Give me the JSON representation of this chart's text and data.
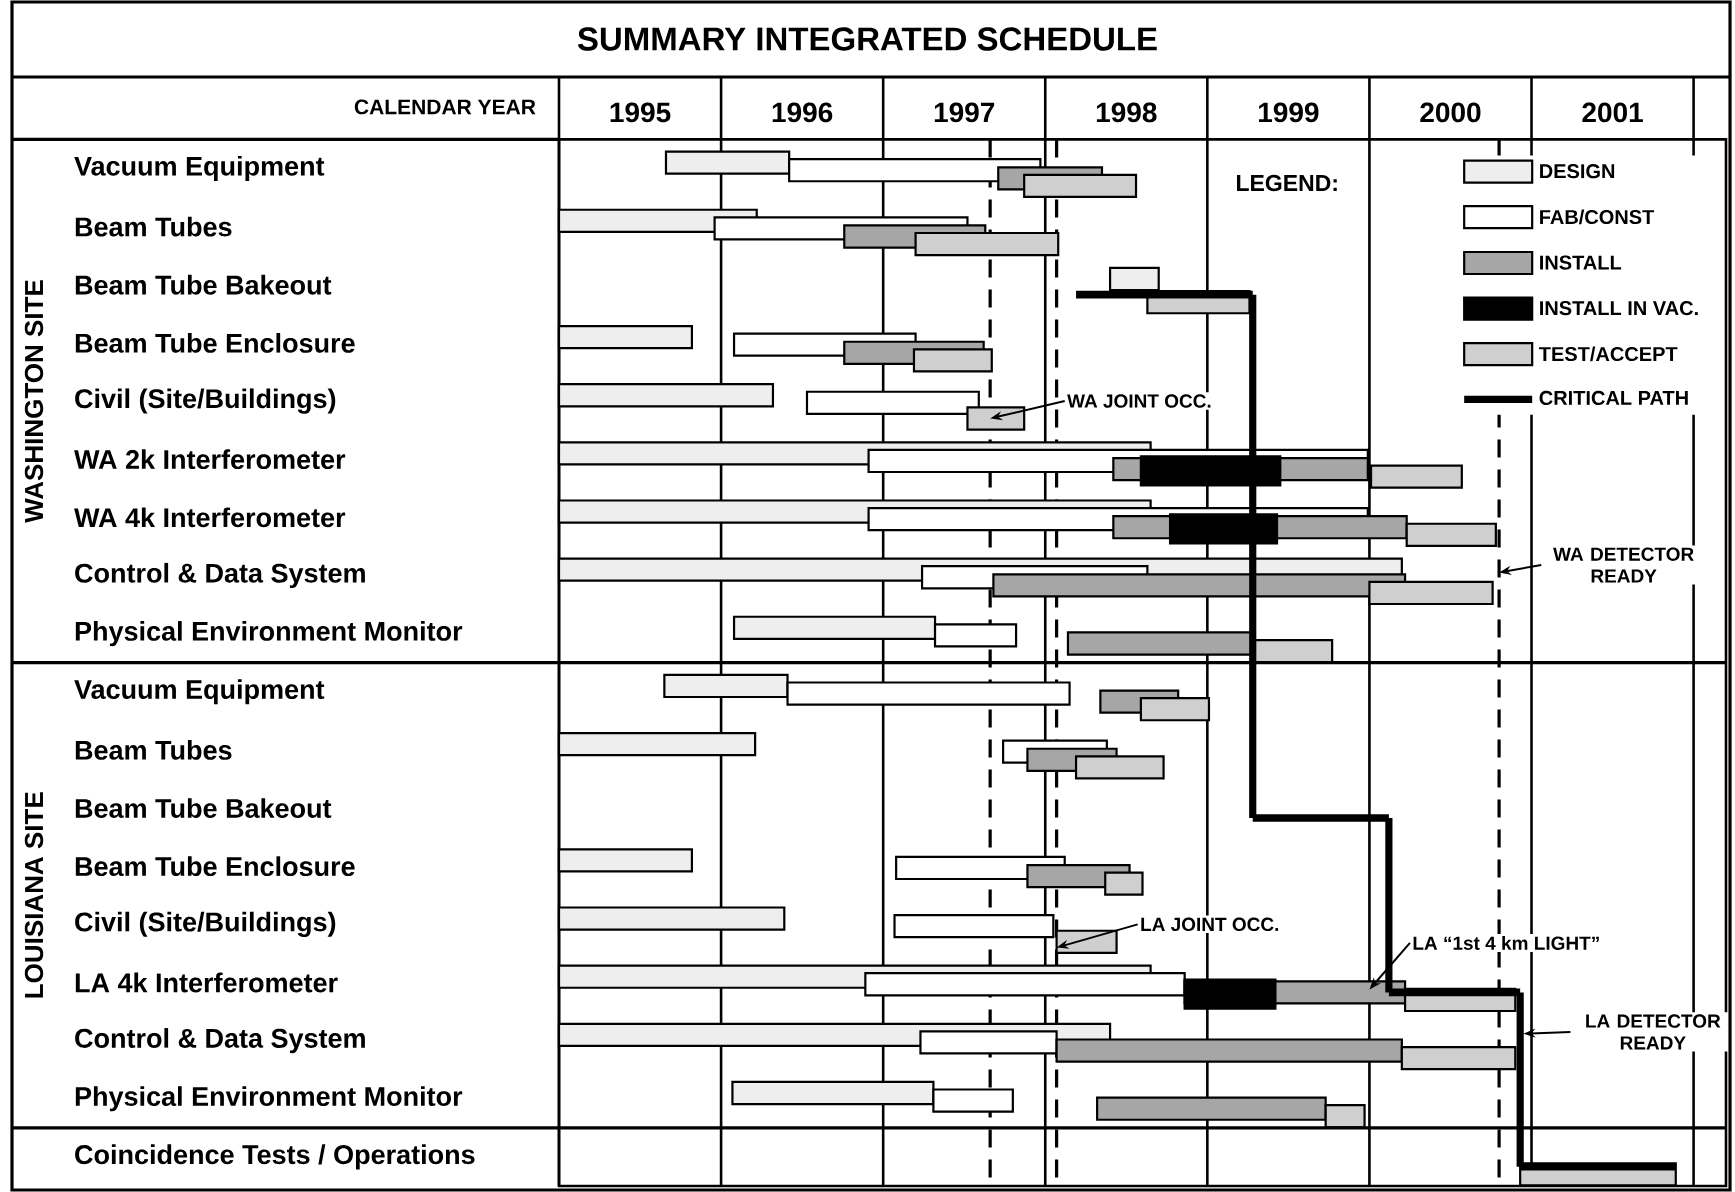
{
  "chart_data": {
    "type": "bar",
    "orientation": "horizontal",
    "title": "SUMMARY INTEGRATED SCHEDULE",
    "xlabel": "CALENDAR YEAR",
    "legend_title": "LEGEND:",
    "categories": [
      "Vacuum Equipment",
      "Beam Tubes",
      "Beam Tube Bakeout",
      "Beam Tube Enclosure",
      "Civil (Site/Buildings)",
      "WA 2k Interferometer",
      "WA 4k Interferometer",
      "Control & Data System",
      "Physical Environment Monitor",
      "Vacuum Equipment",
      "Beam Tubes",
      "Beam Tube Bakeout",
      "Beam Tube Enclosure",
      "Civil (Site/Buildings)",
      "LA 4k Interferometer",
      "Control & Data System",
      "Physical Environment Monitor",
      "Coincidence Tests / Operations"
    ],
    "series": [
      {
        "name": "DESIGN",
        "color": "#eeeeee",
        "base": [
          1995.66,
          1995.0,
          1998.4,
          1995.0,
          1995.0,
          1995.0,
          1995.0,
          1995.0,
          1996.08,
          1995.65,
          1995.0,
          null,
          1995.0,
          1995.0,
          1995.0,
          1995.0,
          1996.07,
          null
        ],
        "values": [
          0.76,
          1.22,
          0.3,
          0.82,
          1.32,
          3.65,
          3.65,
          5.2,
          1.24,
          0.76,
          1.21,
          null,
          0.82,
          1.39,
          3.65,
          3.4,
          1.24,
          null
        ]
      },
      {
        "name": "FAB/CONST",
        "color": "#ffffff",
        "base": [
          1996.42,
          1995.96,
          null,
          1996.08,
          1996.53,
          1996.91,
          1996.91,
          1997.24,
          1997.32,
          1996.41,
          1997.74,
          null,
          1997.08,
          1997.07,
          1996.89,
          1997.23,
          1997.31,
          null
        ],
        "values": [
          1.55,
          1.56,
          null,
          1.12,
          1.06,
          3.08,
          3.08,
          1.39,
          0.5,
          1.74,
          0.64,
          null,
          1.04,
          0.98,
          1.97,
          0.84,
          0.49,
          null
        ]
      },
      {
        "name": "INSTALL",
        "color": "#a6a6a6",
        "base": [
          1997.71,
          1996.76,
          null,
          1996.76,
          null,
          1998.42,
          1998.42,
          1997.68,
          1998.14,
          1998.34,
          1997.89,
          null,
          1997.89,
          null,
          1998.86,
          1998.07,
          1998.32,
          null
        ],
        "values": [
          0.64,
          0.87,
          null,
          0.86,
          null,
          1.57,
          1.81,
          2.54,
          1.15,
          0.48,
          0.55,
          null,
          0.63,
          null,
          1.36,
          2.13,
          1.41,
          null
        ]
      },
      {
        "name": "INSTALL IN VAC.",
        "color": "#000000",
        "base": [
          null,
          null,
          null,
          null,
          null,
          1998.59,
          1998.77,
          null,
          null,
          null,
          null,
          null,
          null,
          null,
          1998.86,
          null,
          null,
          null
        ],
        "values": [
          null,
          null,
          null,
          null,
          null,
          0.86,
          0.66,
          null,
          null,
          null,
          null,
          null,
          null,
          null,
          0.56,
          null,
          null,
          null
        ]
      },
      {
        "name": "TEST/ACCEPT",
        "color": "#cfcfcf",
        "base": [
          1997.87,
          1997.2,
          1998.63,
          1997.19,
          1997.52,
          2000.01,
          2000.23,
          2000.0,
          1999.29,
          1998.59,
          1998.19,
          null,
          1998.37,
          1998.07,
          2000.22,
          2000.2,
          1999.73,
          2000.93
        ],
        "values": [
          0.69,
          0.88,
          0.63,
          0.48,
          0.35,
          0.56,
          0.55,
          0.76,
          0.48,
          0.42,
          0.54,
          null,
          0.23,
          0.37,
          0.68,
          0.7,
          0.24,
          0.96
        ]
      },
      {
        "name": "CRITICAL PATH",
        "line_style": "solid",
        "color": "#000000",
        "base": [
          null,
          null,
          1998.19,
          null,
          null,
          null,
          null,
          null,
          null,
          null,
          null,
          1999.28,
          null,
          null,
          2000.12,
          null,
          null,
          2000.93
        ],
        "values": [
          null,
          null,
          1.09,
          null,
          null,
          null,
          null,
          null,
          null,
          null,
          null,
          0.84,
          null,
          null,
          0.81,
          null,
          null,
          0.96
        ]
      }
    ],
    "xlim": [
      1995,
      2002.2
    ],
    "xticks": [
      {
        "value": 1995,
        "label": null
      },
      {
        "value": 1995.5,
        "label": "1995"
      },
      {
        "value": 1996,
        "label": null
      },
      {
        "value": 1996.5,
        "label": "1996"
      },
      {
        "value": 1997,
        "label": null
      },
      {
        "value": 1997.5,
        "label": "1997"
      },
      {
        "value": 1998,
        "label": null
      },
      {
        "value": 1998.5,
        "label": "1998"
      },
      {
        "value": 1999,
        "label": null
      },
      {
        "value": 1999.5,
        "label": "1999"
      },
      {
        "value": 2000,
        "label": null
      },
      {
        "value": 2000.5,
        "label": "2000"
      },
      {
        "value": 2001,
        "label": null
      },
      {
        "value": 2001.5,
        "label": "2001"
      },
      {
        "value": 2002,
        "label": null
      }
    ],
    "grid": "x",
    "legend": "top right",
    "ref_lines": [
      {
        "axis": "x",
        "value": 1997.66,
        "line_style": "dashed",
        "label": "WA JOINT OCC."
      },
      {
        "axis": "x",
        "value": 1998.07,
        "line_style": "dashed",
        "label": "LA JOINT OCC."
      },
      {
        "axis": "x",
        "value": 2000.8,
        "line_style": "dashed",
        "label": "WA DETECTOR READY"
      }
    ],
    "annotations": [
      "WASHINGTON SITE",
      "LOUISIANA SITE",
      {
        "text": "LA “1st 4 km LIGHT”",
        "x": 2000.0,
        "y": "LA 4k Interferometer"
      },
      "LA DETECTOR READY"
    ]
  }
}
